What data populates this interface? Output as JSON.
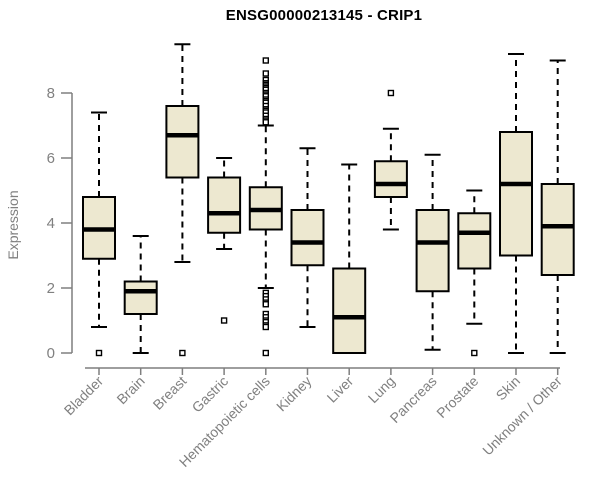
{
  "title": "ENSG00000213145 - CRIP1",
  "chart_data": {
    "type": "boxplot",
    "title": "ENSG00000213145 - CRIP1",
    "xlabel": "",
    "ylabel": "Expression",
    "yticks": [
      0,
      2,
      4,
      6,
      8
    ],
    "ylim": [
      0,
      9.7
    ],
    "grid": false,
    "legend": "none",
    "categories": [
      "Bladder",
      "Brain",
      "Breast",
      "Gastric",
      "Hematopoietic cells",
      "Kidney",
      "Liver",
      "Lung",
      "Pancreas",
      "Prostate",
      "Skin",
      "Unknown / Other"
    ],
    "series": [
      {
        "category": "Bladder",
        "whisker_low": 0.8,
        "q1": 2.9,
        "median": 3.8,
        "q3": 4.8,
        "whisker_high": 7.4,
        "outliers": [
          0
        ]
      },
      {
        "category": "Brain",
        "whisker_low": 0.0,
        "q1": 1.2,
        "median": 1.9,
        "q3": 2.2,
        "whisker_high": 3.6,
        "outliers": []
      },
      {
        "category": "Breast",
        "whisker_low": 2.8,
        "q1": 5.4,
        "median": 6.7,
        "q3": 7.6,
        "whisker_high": 9.5,
        "outliers": [
          0
        ]
      },
      {
        "category": "Gastric",
        "whisker_low": 3.2,
        "q1": 3.7,
        "median": 4.3,
        "q3": 5.4,
        "whisker_high": 6.0,
        "outliers": [
          1.0
        ]
      },
      {
        "category": "Hematopoietic cells",
        "whisker_low": 2.0,
        "q1": 3.8,
        "median": 4.4,
        "q3": 5.1,
        "whisker_high": 7.0,
        "outliers": [
          9.0,
          8.6,
          8.4,
          8.3,
          8.25,
          8.2,
          8.15,
          8.1,
          8.0,
          7.95,
          7.9,
          7.8,
          7.75,
          7.7,
          7.6,
          7.5,
          7.45,
          7.4,
          7.3,
          7.2,
          7.15,
          7.1,
          1.85,
          1.75,
          1.65,
          1.55,
          1.5,
          1.2,
          1.1,
          1.0,
          0.95,
          0.85,
          0.8,
          0.0
        ]
      },
      {
        "category": "Kidney",
        "whisker_low": 0.8,
        "q1": 2.7,
        "median": 3.4,
        "q3": 4.4,
        "whisker_high": 6.3,
        "outliers": []
      },
      {
        "category": "Liver",
        "whisker_low": 0.0,
        "q1": 0.0,
        "median": 1.1,
        "q3": 2.6,
        "whisker_high": 5.8,
        "outliers": []
      },
      {
        "category": "Lung",
        "whisker_low": 3.8,
        "q1": 4.8,
        "median": 5.2,
        "q3": 5.9,
        "whisker_high": 6.9,
        "outliers": [
          8.0
        ]
      },
      {
        "category": "Pancreas",
        "whisker_low": 0.1,
        "q1": 1.9,
        "median": 3.4,
        "q3": 4.4,
        "whisker_high": 6.1,
        "outliers": []
      },
      {
        "category": "Prostate",
        "whisker_low": 0.9,
        "q1": 2.6,
        "median": 3.7,
        "q3": 4.3,
        "whisker_high": 5.0,
        "outliers": [
          0
        ]
      },
      {
        "category": "Skin",
        "whisker_low": 0.0,
        "q1": 3.0,
        "median": 5.2,
        "q3": 6.8,
        "whisker_high": 9.2,
        "outliers": []
      },
      {
        "category": "Unknown / Other",
        "whisker_low": 0.0,
        "q1": 2.4,
        "median": 3.9,
        "q3": 5.2,
        "whisker_high": 9.0,
        "outliers": []
      }
    ],
    "colors": {
      "box_fill": "#EDE8D0",
      "box_stroke": "#000000",
      "median": "#000000",
      "axis": "#7f7f7f",
      "tick_label": "#808080",
      "title": "#000000",
      "background": "#ffffff"
    }
  }
}
